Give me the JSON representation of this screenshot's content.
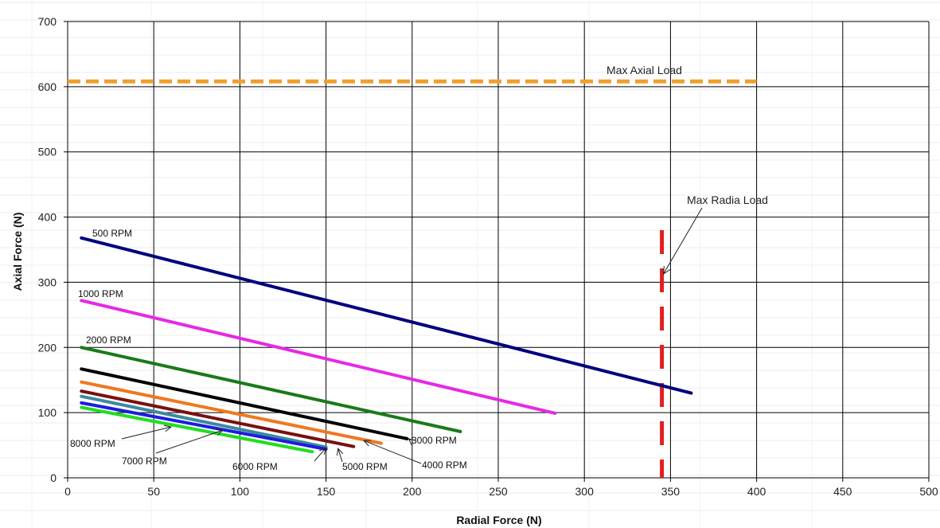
{
  "chart_data": {
    "type": "line",
    "title": "",
    "xlabel": "Radial Force (N)",
    "ylabel": "Axial Force (N)",
    "xlim": [
      0,
      500
    ],
    "ylim": [
      0,
      700
    ],
    "x_ticks": [
      0,
      50,
      100,
      150,
      200,
      250,
      300,
      350,
      400,
      450,
      500
    ],
    "y_ticks": [
      0,
      100,
      200,
      300,
      400,
      500,
      600,
      700
    ],
    "grid": true,
    "legend": "none",
    "series": [
      {
        "name": "500 RPM",
        "color": "#000080",
        "x": [
          8,
          362
        ],
        "y": [
          368,
          130
        ]
      },
      {
        "name": "1000 RPM",
        "color": "#e629e6",
        "x": [
          8,
          283
        ],
        "y": [
          272,
          99
        ]
      },
      {
        "name": "2000 RPM",
        "color": "#1a7a1a",
        "x": [
          8,
          228
        ],
        "y": [
          200,
          71
        ]
      },
      {
        "name": "3000 RPM",
        "color": "#000000",
        "x": [
          8,
          197
        ],
        "y": [
          167,
          60
        ]
      },
      {
        "name": "4000 RPM",
        "color": "#f07820",
        "x": [
          8,
          182
        ],
        "y": [
          147,
          53
        ]
      },
      {
        "name": "5000 RPM",
        "color": "#7a1010",
        "x": [
          8,
          166
        ],
        "y": [
          133,
          48
        ]
      },
      {
        "name": "6000 RPM",
        "color": "#3a8aa0",
        "x": [
          8,
          150
        ],
        "y": [
          125,
          47
        ]
      },
      {
        "name": "7000 RPM",
        "color": "#1c1ce0",
        "x": [
          8,
          150
        ],
        "y": [
          115,
          44
        ]
      },
      {
        "name": "8000 RPM",
        "color": "#22dd22",
        "x": [
          8,
          142
        ],
        "y": [
          108,
          40
        ]
      }
    ],
    "limits": [
      {
        "label": "Max Axial Load",
        "orientation": "horizontal",
        "value": 608,
        "from": 0,
        "to": 400,
        "color": "#f0a030",
        "style": "dashed"
      },
      {
        "label": "Max Radia  Load",
        "orientation": "vertical",
        "value": 345,
        "from": 0,
        "to": 380,
        "color": "#e02020",
        "style": "dashed"
      }
    ]
  }
}
